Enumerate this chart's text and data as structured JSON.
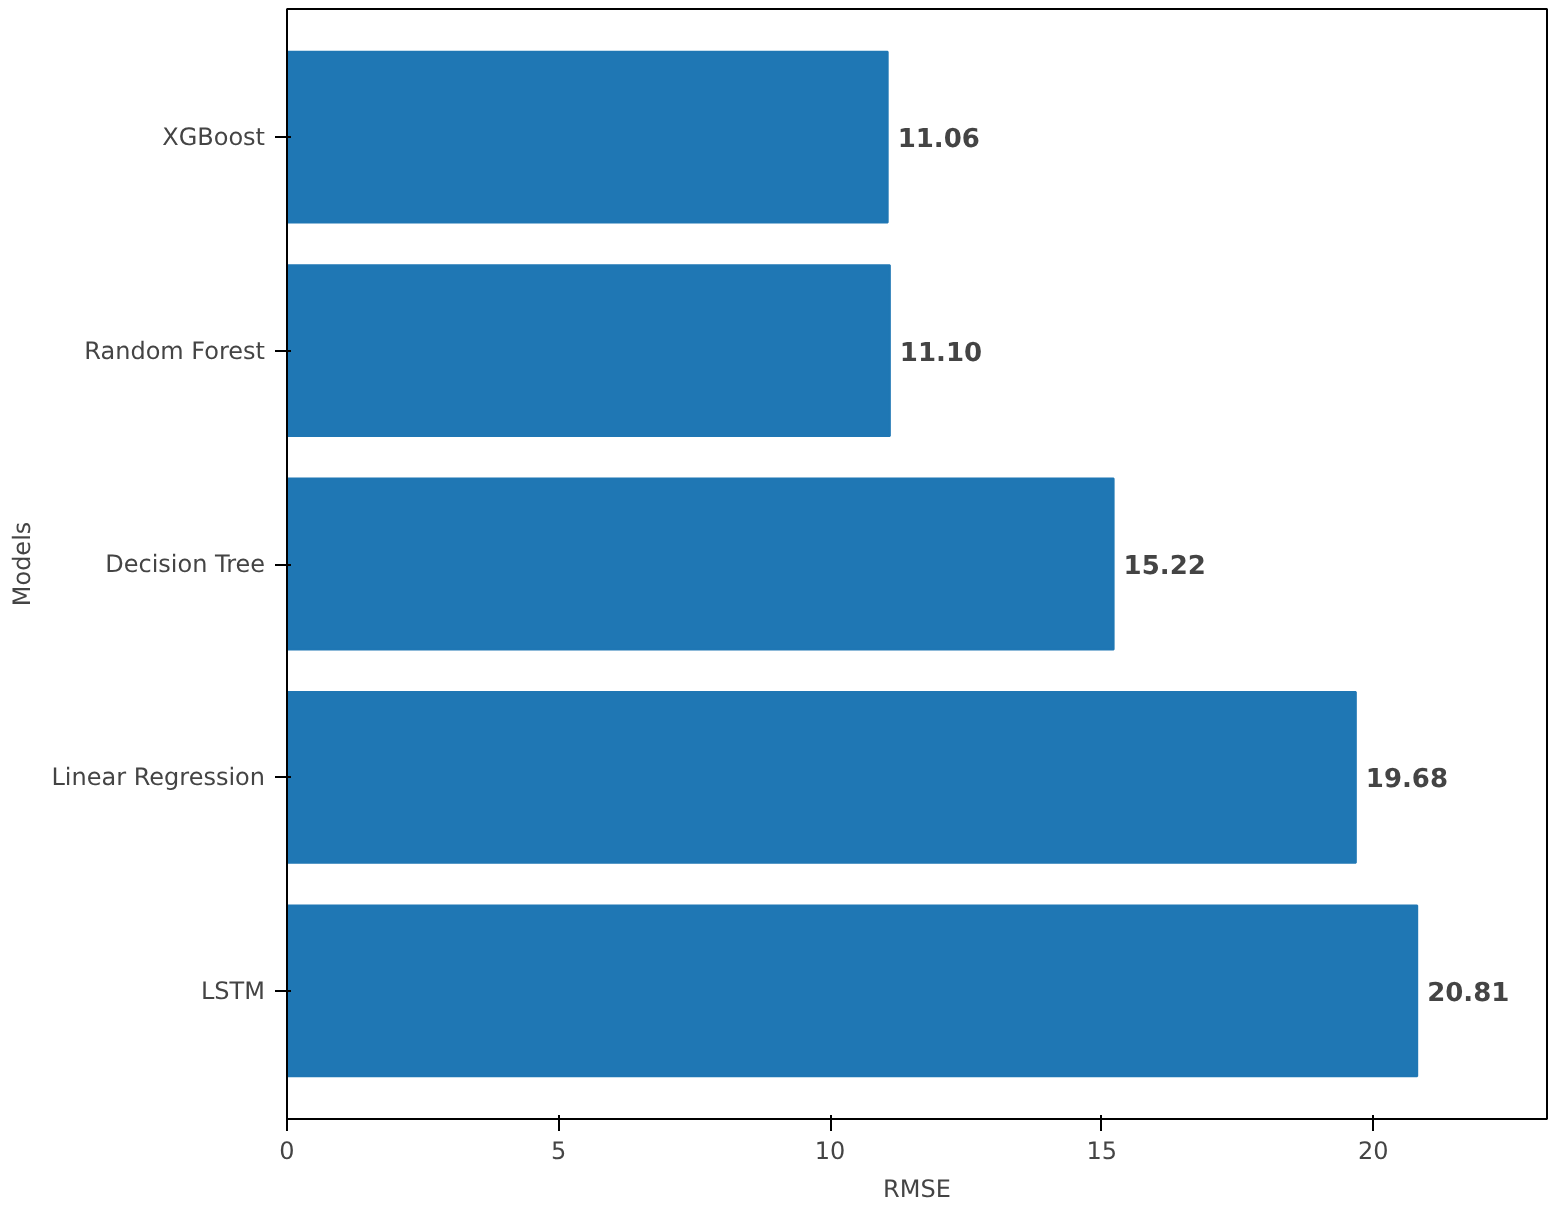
{
  "chart_data": {
    "type": "bar",
    "orientation": "horizontal",
    "xlabel": "RMSE",
    "ylabel": "Models",
    "categories": [
      "XGBoost",
      "Random Forest",
      "Decision Tree",
      "Linear Regression",
      "LSTM"
    ],
    "values": [
      11.06,
      11.1,
      15.22,
      19.68,
      20.81
    ],
    "value_labels": [
      "11.06",
      "11.10",
      "15.22",
      "19.68",
      "20.81"
    ],
    "color": "#1f77b4",
    "xlim": [
      0,
      23.2
    ],
    "xticks": [
      0,
      5,
      10,
      15,
      20
    ],
    "grid": false
  }
}
